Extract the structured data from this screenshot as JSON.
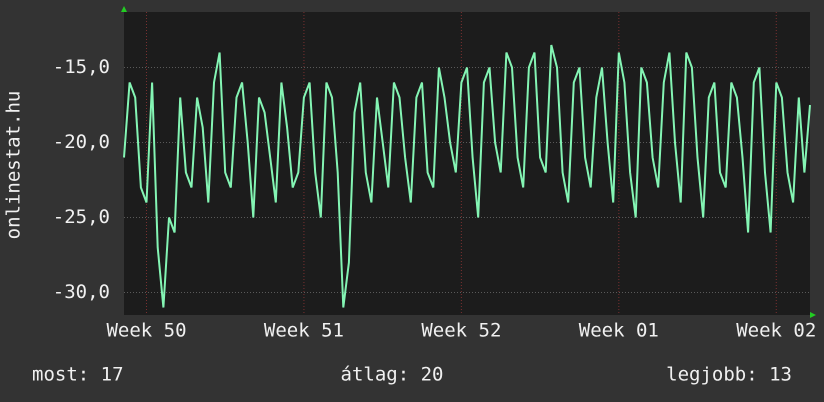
{
  "chart_data": {
    "type": "line",
    "ylabel": "onlinestat.hu",
    "x": [
      0,
      6,
      12,
      18,
      24,
      30,
      36,
      42,
      48,
      54,
      60,
      66,
      72,
      78,
      84,
      90,
      96,
      102,
      108,
      114,
      120,
      126,
      132,
      138,
      144,
      150,
      156,
      162,
      168,
      174,
      180,
      186,
      192,
      198,
      204,
      210,
      216,
      222,
      228,
      234,
      240,
      246,
      252,
      258,
      264,
      270,
      276,
      282,
      288,
      294,
      300,
      306,
      312,
      318,
      324,
      330,
      336,
      342,
      348,
      354,
      360,
      366,
      372,
      378,
      384,
      390,
      396,
      402,
      408,
      414,
      420,
      426,
      432,
      438,
      444,
      450,
      456,
      462,
      468,
      474,
      480,
      486,
      492,
      498,
      504,
      510,
      516,
      522,
      528,
      534,
      540,
      546,
      552,
      558,
      564,
      570,
      576,
      582,
      588,
      594,
      600,
      606,
      612,
      618,
      624,
      630,
      636,
      642,
      648,
      654,
      660,
      666,
      672,
      678,
      684,
      690,
      696,
      702,
      708,
      714,
      720,
      726,
      732
    ],
    "series": [
      {
        "name": "onlinestat.hu",
        "color": "#84f5b4",
        "values": [
          -21,
          -16,
          -17,
          -23,
          -24,
          -16,
          -27,
          -31,
          -25,
          -26,
          -17,
          -22,
          -23,
          -17,
          -19,
          -24,
          -16,
          -14,
          -22,
          -23,
          -17,
          -16,
          -20,
          -25,
          -17,
          -18,
          -21,
          -24,
          -16,
          -19,
          -23,
          -22,
          -17,
          -16,
          -22,
          -25,
          -16,
          -17,
          -22,
          -31,
          -28,
          -18,
          -16,
          -22,
          -24,
          -17,
          -20,
          -23,
          -16,
          -17,
          -21,
          -24,
          -17,
          -16,
          -22,
          -23,
          -15,
          -17,
          -20,
          -22,
          -16,
          -15,
          -21,
          -25,
          -16,
          -15,
          -20,
          -22,
          -14,
          -15,
          -21,
          -23,
          -15,
          -14,
          -21,
          -22,
          -13.5,
          -15,
          -22,
          -24,
          -16,
          -15,
          -21,
          -23,
          -17,
          -15,
          -20,
          -24,
          -14,
          -16,
          -22,
          -25,
          -15,
          -16,
          -21,
          -23,
          -16,
          -14,
          -20,
          -24,
          -14,
          -15,
          -21,
          -25,
          -17,
          -16,
          -22,
          -23,
          -16,
          -17,
          -21,
          -26,
          -16,
          -15,
          -22,
          -26,
          -16,
          -17,
          -22,
          -24,
          -17,
          -22,
          -17.5
        ]
      }
    ],
    "xlim": [
      0,
      732
    ],
    "xticks": [
      {
        "value": 24,
        "label": "Week 50"
      },
      {
        "value": 192,
        "label": "Week 51"
      },
      {
        "value": 360,
        "label": "Week 52"
      },
      {
        "value": 528,
        "label": "Week 01"
      },
      {
        "value": 696,
        "label": "Week 02"
      }
    ],
    "ylim": [
      -31.5,
      -11.3
    ],
    "yticks": [
      {
        "value": -30,
        "label": "-30,0"
      },
      {
        "value": -25,
        "label": "-25,0"
      },
      {
        "value": -20,
        "label": "-20,0"
      },
      {
        "value": -15,
        "label": "-15,0"
      }
    ],
    "grid": true,
    "footer": [
      "most: 17",
      "átlag: 20",
      "legjobb: 13"
    ]
  }
}
